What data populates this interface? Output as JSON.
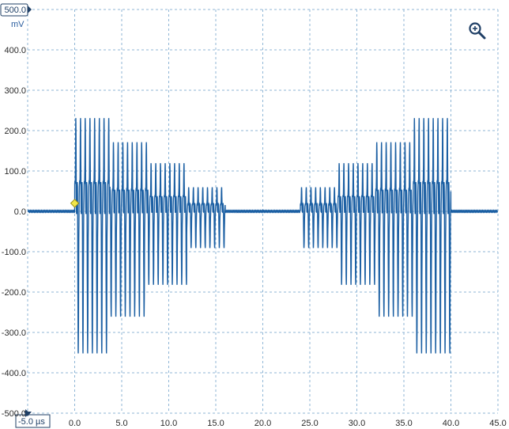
{
  "colors": {
    "trace": "#1b5fa3",
    "grid": "#8fb6d6",
    "axis_box": "#1f3f66",
    "trigger_marker": "#f2e64a",
    "zoom_icon": "#1f3f66"
  },
  "icons": {
    "zoom": "zoom-in-icon"
  },
  "chart_data": {
    "type": "line",
    "title": "",
    "xlabel": "µs",
    "ylabel": "mV",
    "x_unit": "µs",
    "y_unit": "mV",
    "xlim": [
      -5.0,
      45.0
    ],
    "ylim": [
      -500.0,
      500.0
    ],
    "x_ticks": [
      "-5.0",
      "0.0",
      "5.0",
      "10.0",
      "15.0",
      "20.0",
      "25.0",
      "30.0",
      "35.0",
      "40.0",
      "45.0"
    ],
    "y_ticks": [
      "500.0",
      "400.0",
      "300.0",
      "200.0",
      "100.0",
      "0.0",
      "-100.0",
      "-200.0",
      "-300.0",
      "-400.0",
      "-500.0"
    ],
    "grid": true,
    "trigger": {
      "x": 0.0,
      "y": 20.0
    },
    "series": [
      {
        "pulse_period_us": 0.5,
        "amplitude_envelope": [
          {
            "start": 0.0,
            "end": 3.75,
            "amp": 290
          },
          {
            "start": 3.75,
            "end": 7.8,
            "amp": 215
          },
          {
            "start": 7.8,
            "end": 11.9,
            "amp": 150
          },
          {
            "start": 11.9,
            "end": 16.0,
            "amp": 75
          },
          {
            "start": 16.0,
            "end": 24.0,
            "amp": 0
          },
          {
            "start": 24.0,
            "end": 28.0,
            "amp": 75
          },
          {
            "start": 28.0,
            "end": 32.0,
            "amp": 150
          },
          {
            "start": 32.0,
            "end": 36.0,
            "amp": 215
          },
          {
            "start": 36.0,
            "end": 40.0,
            "amp": 290
          }
        ]
      }
    ]
  }
}
